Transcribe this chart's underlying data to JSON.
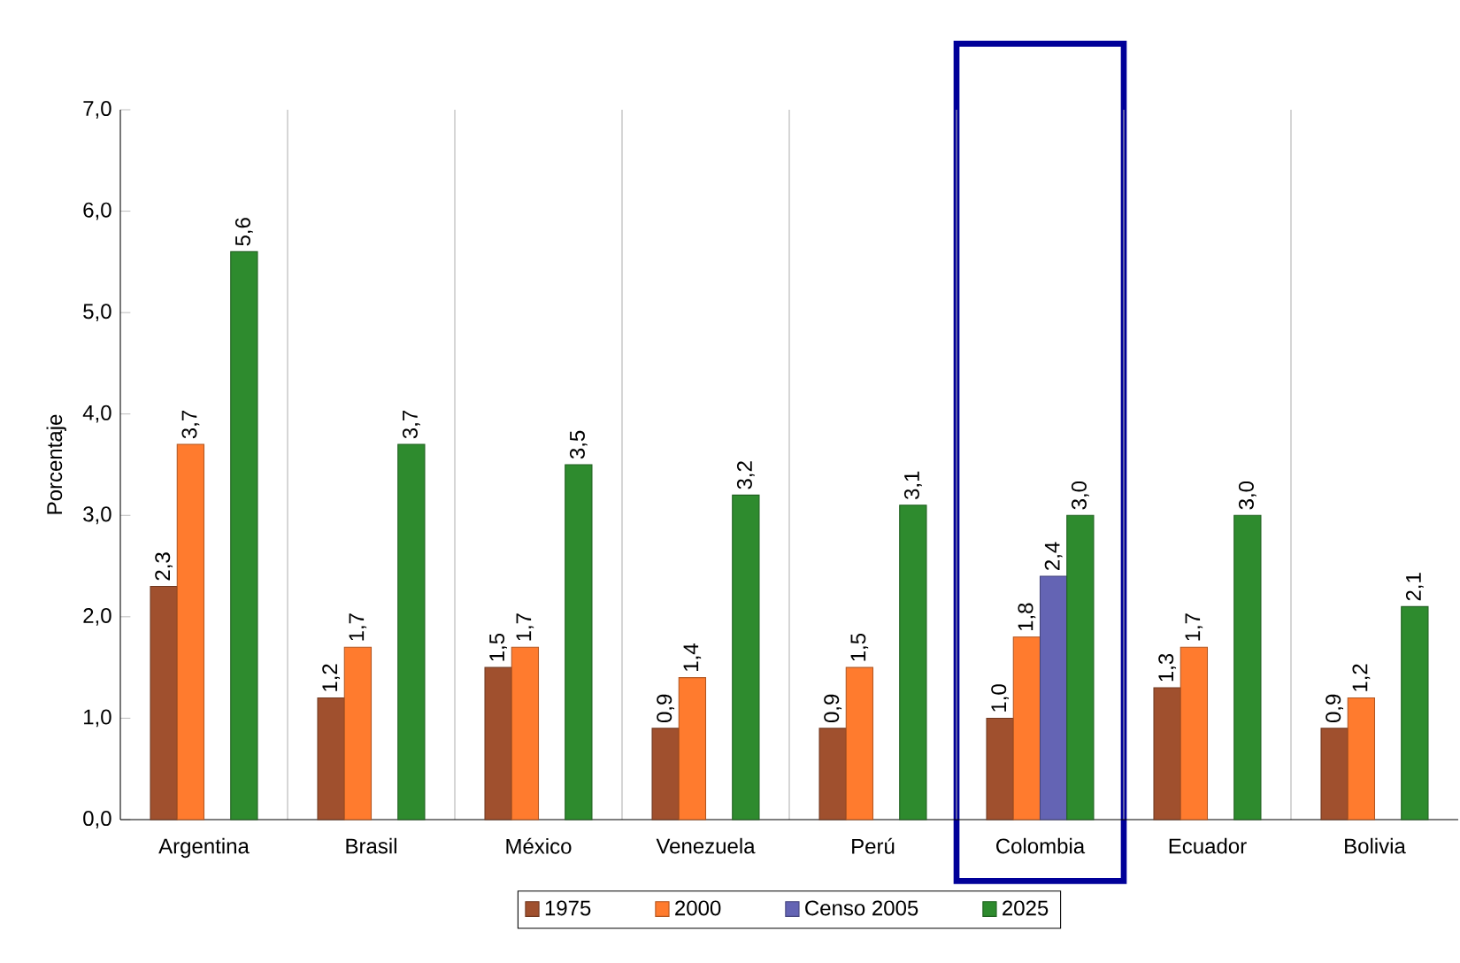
{
  "chart_data": {
    "type": "bar",
    "ylabel": "Porcentaje",
    "categories": [
      "Argentina",
      "Brasil",
      "México",
      "Venezuela",
      "Perú",
      "Colombia",
      "Ecuador",
      "Bolivia"
    ],
    "series": [
      {
        "name": "1975",
        "color": "#a0502e",
        "values": [
          2.3,
          1.2,
          1.5,
          0.9,
          0.9,
          1.0,
          1.3,
          0.9
        ],
        "value_labels": [
          "2,3",
          "1,2",
          "1,5",
          "0,9",
          "0,9",
          "1,0",
          "1,3",
          "0,9"
        ]
      },
      {
        "name": "2000",
        "color": "#ff7b2e",
        "values": [
          3.7,
          1.7,
          1.7,
          1.4,
          1.5,
          1.8,
          1.7,
          1.2
        ],
        "value_labels": [
          "3,7",
          "1,7",
          "1,7",
          "1,4",
          "1,5",
          "1,8",
          "1,7",
          "1,2"
        ]
      },
      {
        "name": "Censo 2005",
        "color": "#6464b4",
        "values": [
          null,
          null,
          null,
          null,
          null,
          2.4,
          null,
          null
        ],
        "value_labels": [
          null,
          null,
          null,
          null,
          null,
          "2,4",
          null,
          null
        ]
      },
      {
        "name": "2025",
        "color": "#2e8b2e",
        "values": [
          5.6,
          3.7,
          3.5,
          3.2,
          3.1,
          3.0,
          3.0,
          2.1
        ],
        "value_labels": [
          "5,6",
          "3,7",
          "3,5",
          "3,2",
          "3,1",
          "3,0",
          "3,0",
          "2,1"
        ]
      }
    ],
    "ylim": [
      0,
      7
    ],
    "yticks": [
      {
        "value": 0,
        "label": "0,0"
      },
      {
        "value": 1,
        "label": "1,0"
      },
      {
        "value": 2,
        "label": "2,0"
      },
      {
        "value": 3,
        "label": "3,0"
      },
      {
        "value": 4,
        "label": "4,0"
      },
      {
        "value": 5,
        "label": "5,0"
      },
      {
        "value": 6,
        "label": "6,0"
      },
      {
        "value": 7,
        "label": "7,0"
      }
    ],
    "bands": [
      {
        "axis": "x",
        "from": "Colombia",
        "to": "Colombia",
        "color": "#000099"
      }
    ],
    "grid": "x",
    "legend": "bottom"
  }
}
